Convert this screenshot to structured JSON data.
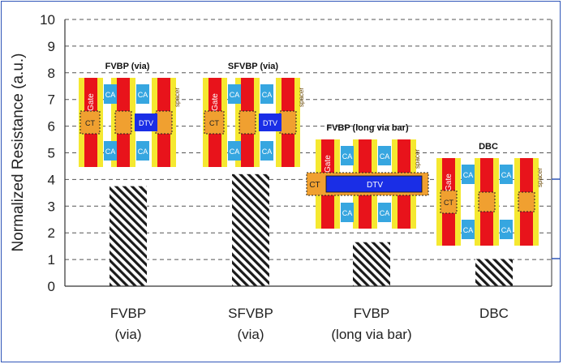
{
  "chart_data": {
    "type": "bar",
    "ylabel": "Normalized Resistance (a.u.)",
    "ylim": [
      0,
      10
    ],
    "yticks": [
      "0",
      "1",
      "2",
      "3",
      "4",
      "5",
      "6",
      "7",
      "8",
      "9",
      "10"
    ],
    "grid": "dashed-horizontal",
    "categories": [
      {
        "line1": "FVBP",
        "line2": "(via)"
      },
      {
        "line1": "SFVBP",
        "line2": "(via)"
      },
      {
        "line1": "FVBP",
        "line2": "(long via bar)"
      },
      {
        "line1": "DBC",
        "line2": ""
      }
    ],
    "values": [
      3.75,
      4.2,
      1.65,
      1.02
    ],
    "bar_pattern": "diagonal-hatch",
    "insets": [
      {
        "title": "FVBP (via)",
        "gate": "Gate",
        "ct": "CT",
        "ca": "CA",
        "dtv": "DTV",
        "spacer": "spacer"
      },
      {
        "title": "SFVBP (via)",
        "gate": "Gate",
        "ct": "CT",
        "ca": "CA",
        "dtv": "DTV",
        "spacer": "spacer"
      },
      {
        "title": "FVBP (long via bar)",
        "gate": "Gate",
        "ct": "CT",
        "ca": "CA",
        "dtv": "DTV",
        "spacer": "spacer"
      },
      {
        "title": "DBC",
        "gate": "Gate",
        "ct": "CT",
        "ca": "CA",
        "spacer": "spacer"
      }
    ],
    "colors": {
      "gate": "#e8131b",
      "spacer": "#f5e830",
      "ca": "#36a6e0",
      "dtv": "#1a2ee6",
      "ct": "#f0a030",
      "grid": "#555555"
    }
  }
}
